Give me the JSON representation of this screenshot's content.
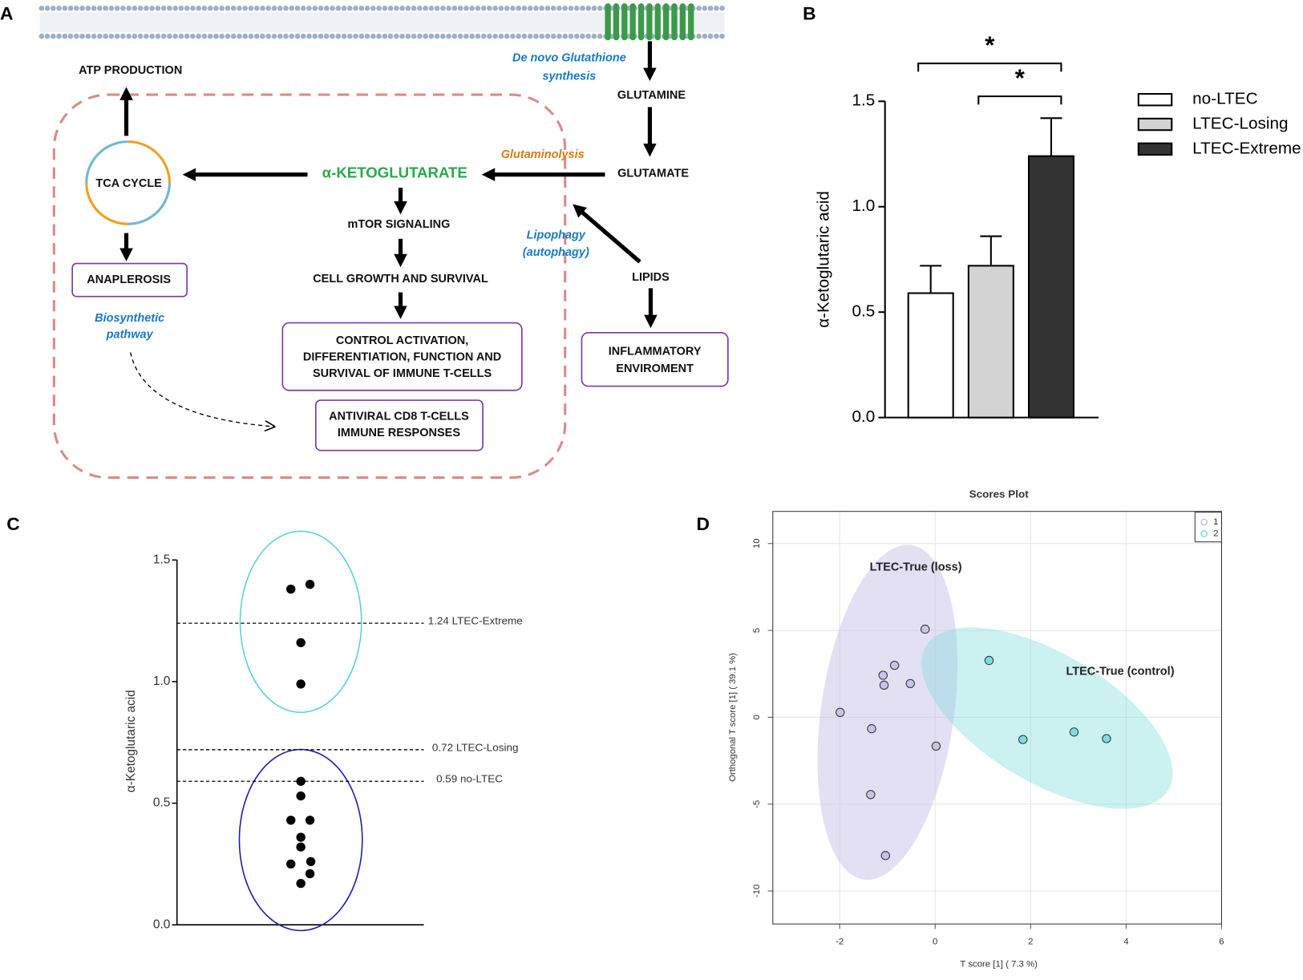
{
  "panel_labels": [
    "A",
    "B",
    "C",
    "D"
  ],
  "diagram": {
    "atp": "ATP PRODUCTION",
    "tca": "TCA CYCLE",
    "anaplerosis": "ANAPLEROSIS",
    "biosynthetic": [
      "Biosynthetic",
      "pathway"
    ],
    "akg": "α-KETOGLUTARATE",
    "mtor": "mTOR SIGNALING",
    "growth": "CELL GROWTH AND SURVIVAL",
    "control": [
      "CONTROL ACTIVATION,",
      "DIFFERENTIATION, FUNCTION AND",
      "SURVIVAL OF IMMUNE T-CELLS"
    ],
    "antiviral": [
      "ANTIVIRAL CD8 T-CELLS",
      "IMMUNE RESPONSES"
    ],
    "glutathione": [
      "De novo Glutathione",
      "synthesis"
    ],
    "glutamine": "GLUTAMINE",
    "glutaminolysis": "Glutaminolysis",
    "glutamate": "GLUTAMATE",
    "lipophagy": [
      "Lipophagy",
      "(autophagy)"
    ],
    "lipids": "LIPIDS",
    "inflammatory": [
      "INFLAMMATORY",
      "ENVIROMENT"
    ]
  },
  "chart_data": [
    {
      "type": "bar",
      "ylabel": "α-Ketoglutaric acid",
      "categories": [
        "no-LTEC",
        "LTEC-Losing",
        "LTEC-Extreme"
      ],
      "values": [
        0.59,
        0.72,
        1.24
      ],
      "errors": [
        0.13,
        0.14,
        0.18
      ],
      "colors": [
        "#ffffff",
        "#d3d3d3",
        "#333333"
      ],
      "ylim": [
        0,
        1.5
      ],
      "yticks": [
        {
          "value": 0,
          "label": "0.0"
        },
        0.5,
        {
          "value": 1,
          "label": "1.0"
        },
        1.5
      ],
      "legend": "right",
      "significance": [
        {
          "pair": [
            "no-LTEC",
            "LTEC-Extreme"
          ],
          "label": "*"
        },
        {
          "pair": [
            "LTEC-Losing",
            "LTEC-Extreme"
          ],
          "label": "*"
        }
      ]
    },
    {
      "type": "strip",
      "ylabel": "α-Ketoglutaric acid",
      "values": [
        1.38,
        1.4,
        1.16,
        0.99,
        0.59,
        0.53,
        0.43,
        0.43,
        0.36,
        0.32,
        0.25,
        0.26,
        0.21,
        0.17
      ],
      "color": "#000000",
      "ylim": [
        0,
        1.5
      ],
      "yticks": [
        {
          "value": 0,
          "label": "0.0"
        },
        0.5,
        {
          "value": 1,
          "label": "1.0"
        },
        1.5
      ],
      "reference_lines": [
        {
          "value": 1.24,
          "label": "1.24 LTEC-Extreme"
        },
        {
          "value": 0.72,
          "label": "0.72 LTEC-Losing"
        },
        {
          "value": 0.59,
          "label": "0.59 no-LTEC"
        }
      ]
    },
    {
      "type": "scatter",
      "title": "Scores Plot",
      "xlabel": "T score [1] ( 7.3 %)",
      "ylabel": "Orthogonal T score [1] ( 39.1 %)",
      "series": [
        {
          "name": "1",
          "color": "#c9c2ea",
          "x": [
            -0.21,
            -0.85,
            -1.09,
            -1.07,
            -0.52,
            -1.99,
            -1.33,
            0.02,
            -1.35,
            -1.04
          ],
          "values": [
            5.07,
            2.99,
            2.42,
            1.85,
            1.94,
            0.28,
            -0.66,
            -1.66,
            -4.45,
            -7.96
          ]
        },
        {
          "name": "2",
          "color": "#7fdcdc",
          "x": [
            1.13,
            1.84,
            2.91,
            3.59
          ],
          "values": [
            3.27,
            -1.28,
            -0.85,
            -1.23
          ]
        }
      ],
      "xlim": [
        -3.4,
        6
      ],
      "ylim": [
        -11.9,
        11.85
      ],
      "xticks": [
        -2,
        0,
        2,
        4,
        6
      ],
      "yticks": [
        -10,
        -5,
        0,
        5,
        10
      ],
      "grid": true,
      "legend": "top-right",
      "annotations": [
        "LTEC-True (loss)",
        "LTEC-True (control)"
      ]
    }
  ]
}
